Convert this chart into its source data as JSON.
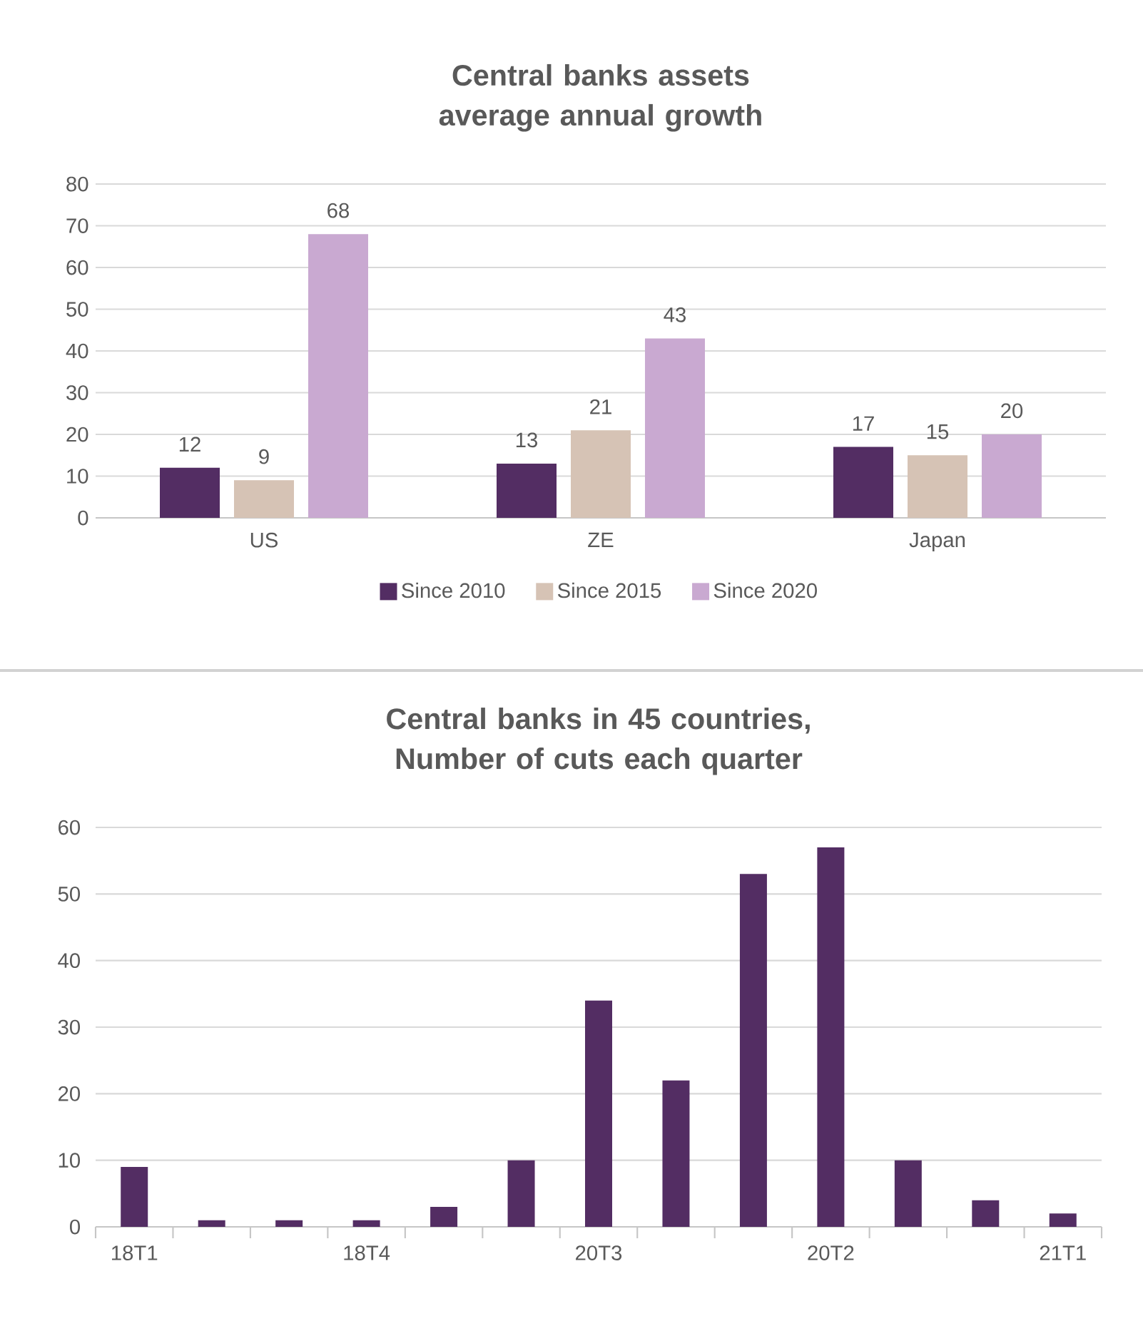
{
  "chart_data": [
    {
      "type": "bar",
      "title": "Central banks assets average annual growth",
      "categories": [
        "US",
        "ZE",
        "Japan"
      ],
      "series": [
        {
          "name": "Since 2010",
          "color": "#532d63",
          "values": [
            12,
            13,
            17
          ]
        },
        {
          "name": "Since 2015",
          "color": "#d6c3b5",
          "values": [
            9,
            21,
            15
          ]
        },
        {
          "name": "Since 2020",
          "color": "#c9a9d1",
          "values": [
            68,
            43,
            20
          ]
        }
      ],
      "ylim": [
        0,
        80
      ],
      "yticks": [
        0,
        10,
        20,
        30,
        40,
        50,
        60,
        70,
        80
      ],
      "grid": "y",
      "legend": "bottom",
      "data_labels": true
    },
    {
      "type": "bar",
      "title": "Central banks in 45 countries, Number of cuts each quarter",
      "categories": [
        "18T1",
        null,
        null,
        "18T4",
        null,
        null,
        "20T3",
        null,
        null,
        "20T2",
        null,
        null,
        "21T1"
      ],
      "values": [
        9,
        1,
        1,
        1,
        3,
        10,
        34,
        22,
        53,
        57,
        10,
        4,
        2
      ],
      "color": "#532d63",
      "ylim": [
        0,
        60
      ],
      "yticks": [
        0,
        10,
        20,
        30,
        40,
        50,
        60
      ],
      "grid": "y"
    }
  ]
}
